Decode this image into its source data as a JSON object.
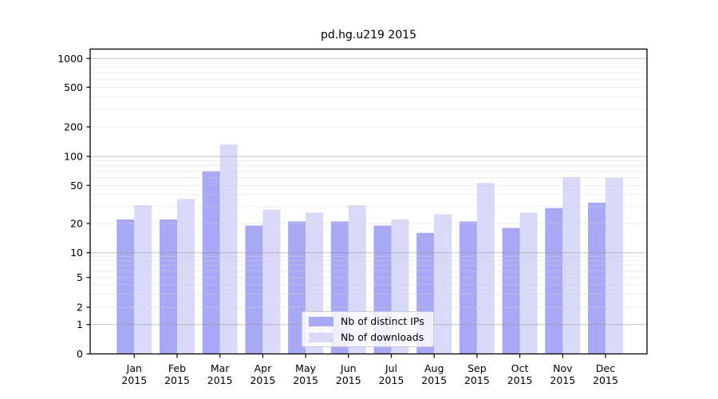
{
  "title": "pd.hg.u219 2015",
  "chart_data": {
    "type": "bar",
    "title": "pd.hg.u219 2015",
    "xlabel": "",
    "ylabel": "",
    "categories": [
      "Jan",
      "Feb",
      "Mar",
      "Apr",
      "May",
      "Jun",
      "Jul",
      "Aug",
      "Sep",
      "Oct",
      "Nov",
      "Dec"
    ],
    "year_label": "2015",
    "series": [
      {
        "name": "Nb of distinct IPs",
        "color": "#a8a8f5",
        "values": [
          22,
          22,
          70,
          19,
          21,
          21,
          19,
          16,
          21,
          18,
          29,
          33
        ]
      },
      {
        "name": "Nb of downloads",
        "color": "#d9d9fa",
        "values": [
          31,
          36,
          132,
          28,
          26,
          31,
          22,
          25,
          53,
          26,
          61,
          60
        ]
      }
    ],
    "yticks": [
      0,
      1,
      2,
      5,
      10,
      20,
      50,
      100,
      200,
      500,
      1000
    ],
    "major_gridline_values": [
      1,
      10,
      100,
      1000
    ],
    "minor_gridline_values": [
      3,
      4,
      6,
      7,
      8,
      9,
      30,
      40,
      60,
      70,
      80,
      90,
      300,
      400,
      600,
      700,
      800,
      900
    ],
    "scale": "quasi-log",
    "scale_anchors_value_to_y": [
      [
        0,
        443.5
      ],
      [
        1,
        406.7
      ],
      [
        2,
        385.0
      ],
      [
        5,
        347.7
      ],
      [
        10,
        316.7
      ],
      [
        20,
        280.0
      ],
      [
        50,
        232.3
      ],
      [
        100,
        196.0
      ],
      [
        200,
        159.0
      ],
      [
        500,
        109.3
      ],
      [
        1000,
        73.3
      ]
    ],
    "grid": "on",
    "legend_position": "bottom-center",
    "colors": {
      "axis": "#000000",
      "major_grid": "#9a9a9a",
      "minor_grid": "#d2d2d2",
      "background": "#ffffff",
      "text": "#000000"
    }
  }
}
